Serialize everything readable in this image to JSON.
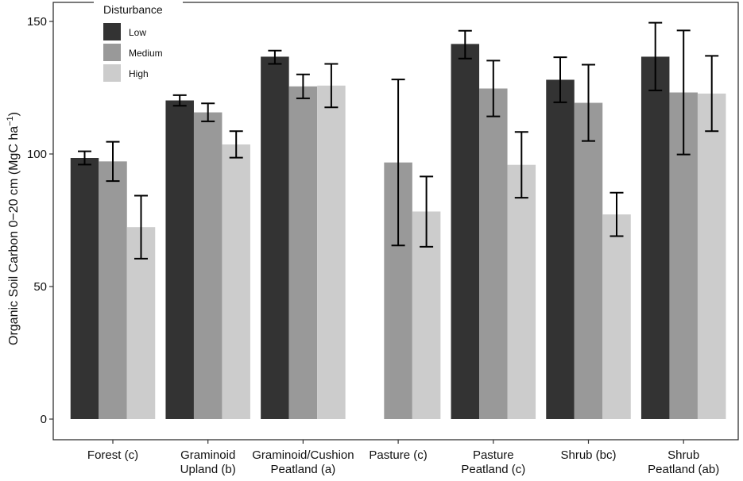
{
  "chart_data": {
    "type": "bar",
    "title": "",
    "xlabel": "",
    "ylabel": "Organic Soil Carbon  0−20 cm (MgC ha",
    "ylabel_superscript": "−1",
    "ylabel_close": ")",
    "ylim": [
      0,
      150
    ],
    "yticks": [
      0,
      50,
      100,
      150
    ],
    "ytick_labels": [
      "0",
      "50",
      "100",
      "150"
    ],
    "grid": false,
    "legend_position": "top-left",
    "legend_title": "Disturbance",
    "categories": [
      [
        "Forest (c)"
      ],
      [
        "Graminoid",
        "Upland  (b)"
      ],
      [
        "Graminoid/Cushion",
        "Peatland  (a)"
      ],
      [
        "Pasture  (c)"
      ],
      [
        "Pasture",
        "Peatland  (c)"
      ],
      [
        "Shrub  (bc)"
      ],
      [
        "Shrub",
        "Peatland  (ab)"
      ]
    ],
    "series": [
      {
        "name": "Low",
        "color": "#333333",
        "values": [
          98.5,
          120.2,
          136.7,
          null,
          141.5,
          128.0,
          136.7
        ],
        "err_low": [
          96.0,
          118.2,
          134.0,
          null,
          136.0,
          119.5,
          124.0
        ],
        "err_high": [
          101.0,
          122.2,
          139.0,
          null,
          146.5,
          136.5,
          149.5
        ]
      },
      {
        "name": "Medium",
        "color": "#999999",
        "values": [
          97.2,
          115.7,
          125.5,
          96.8,
          124.7,
          119.3,
          123.2
        ],
        "err_low": [
          89.8,
          112.3,
          121.0,
          65.5,
          114.2,
          104.9,
          99.8
        ],
        "err_high": [
          104.6,
          119.1,
          130.0,
          128.1,
          135.2,
          133.7,
          146.6
        ]
      },
      {
        "name": "High",
        "color": "#cccccc",
        "values": [
          72.4,
          103.6,
          125.8,
          78.3,
          95.9,
          77.2,
          122.8
        ],
        "err_low": [
          60.5,
          98.6,
          117.6,
          65.0,
          83.5,
          69.0,
          108.6
        ],
        "err_high": [
          84.3,
          108.6,
          134.0,
          91.5,
          108.3,
          85.4,
          137.0
        ]
      }
    ]
  }
}
